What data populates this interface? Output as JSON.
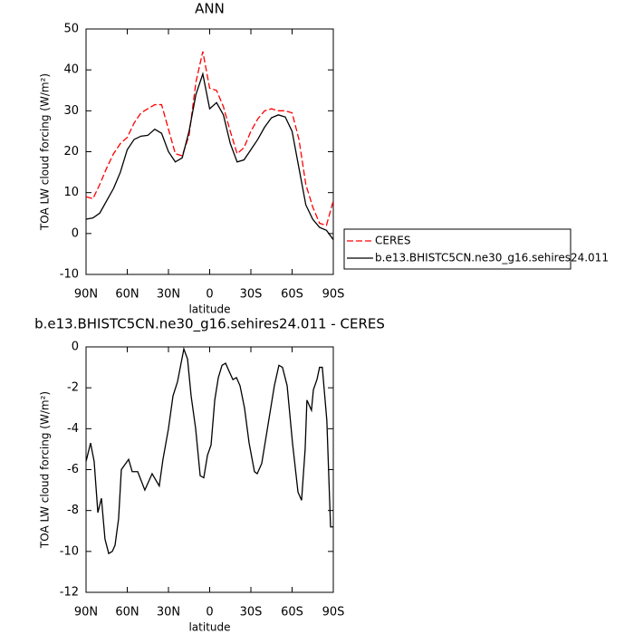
{
  "chart_data": [
    {
      "type": "line",
      "title": "ANN",
      "xlabel": "latitude",
      "ylabel": "TOA LW cloud forcing (W/m²)",
      "x": [
        90,
        85,
        80,
        75,
        70,
        65,
        60,
        55,
        50,
        45,
        40,
        35,
        30,
        25,
        20,
        15,
        10,
        5,
        0,
        -5,
        -10,
        -15,
        -20,
        -25,
        -30,
        -35,
        -40,
        -45,
        -50,
        -55,
        -60,
        -65,
        -70,
        -75,
        -80,
        -85,
        -90
      ],
      "series": [
        {
          "name": "CERES",
          "color": "#ff0000",
          "dash": true,
          "values": [
            9.0,
            8.5,
            12,
            16,
            19.5,
            22,
            23.5,
            27,
            29.5,
            30.5,
            31.5,
            31.5,
            25.5,
            19.5,
            19,
            24,
            37,
            44.5,
            35.5,
            35,
            31,
            25,
            19.5,
            21,
            25,
            28,
            30,
            30.5,
            30,
            30,
            29.5,
            23,
            12,
            6.5,
            2.5,
            2,
            8
          ]
        },
        {
          "name": "b.e13.BHISTC5CN.ne30_g16.sehires24.011",
          "color": "#000000",
          "dash": false,
          "values": [
            3.5,
            3.8,
            5,
            8,
            11,
            15,
            20.5,
            23,
            23.8,
            24,
            25.5,
            24.5,
            20,
            17.5,
            18.5,
            25,
            34,
            39,
            30.5,
            32,
            29,
            22,
            17.5,
            18,
            20.5,
            23,
            26,
            28.3,
            29,
            28.5,
            25,
            16,
            7,
            3.5,
            1.5,
            0.8,
            -1.5
          ]
        }
      ],
      "xlim": [
        90,
        -90
      ],
      "xticks": [
        {
          "value": 90,
          "label": "90N"
        },
        {
          "value": 60,
          "label": "60N"
        },
        {
          "value": 30,
          "label": "30N"
        },
        0,
        {
          "value": -30,
          "label": "30S"
        },
        {
          "value": -60,
          "label": "60S"
        },
        {
          "value": -90,
          "label": "90S"
        }
      ],
      "ylim": [
        -10,
        50
      ],
      "yticks": [
        -10,
        0,
        10,
        20,
        30,
        40,
        50
      ],
      "legend": "right"
    },
    {
      "type": "line",
      "title": "b.e13.BHISTC5CN.ne30_g16.sehires24.011 - CERES",
      "xlabel": "latitude",
      "ylabel": "TOA LW cloud forcing (W/m²)",
      "x": [
        90,
        86.7,
        84.1,
        81.4,
        78.8,
        76.2,
        73.5,
        70.9,
        68.9,
        66.3,
        64.3,
        59,
        56.4,
        52.4,
        47.2,
        41.9,
        36.7,
        34,
        30,
        26.7,
        23.4,
        18.8,
        16.1,
        13.5,
        10.2,
        6.9,
        4.3,
        1.6,
        -1,
        -3.7,
        -6.3,
        -9,
        -11.6,
        -14.2,
        -16.9,
        -19.5,
        -22.1,
        -25.4,
        -28.7,
        -32.6,
        -34.6,
        -37.9,
        -42.5,
        -47.1,
        -50.4,
        -53,
        -56.4,
        -60.3,
        -64.3,
        -66.9,
        -69.5,
        -70.8,
        -74.1,
        -75.5,
        -78.1,
        -80,
        -82,
        -85.3,
        -88,
        -90
      ],
      "values": [
        -5.6,
        -4.7,
        -5.6,
        -8.1,
        -7.4,
        -9.4,
        -10.1,
        -10.0,
        -9.7,
        -8.4,
        -6.0,
        -5.5,
        -6.1,
        -6.1,
        -7.0,
        -6.2,
        -6.8,
        -5.5,
        -4.0,
        -2.4,
        -1.7,
        -0.1,
        -0.6,
        -2.4,
        -4.0,
        -6.3,
        -6.4,
        -5.3,
        -4.8,
        -2.6,
        -1.5,
        -0.9,
        -0.8,
        -1.2,
        -1.6,
        -1.5,
        -1.9,
        -3.0,
        -4.7,
        -6.1,
        -6.2,
        -5.7,
        -3.8,
        -1.9,
        -0.9,
        -1.0,
        -1.9,
        -4.7,
        -7.1,
        -7.5,
        -5.0,
        -2.6,
        -3.1,
        -2.1,
        -1.6,
        -1.0,
        -1.0,
        -3.6,
        -8.8,
        -8.8
      ],
      "color": "#000000",
      "xlim": [
        90,
        -90
      ],
      "xticks": [
        {
          "value": 90,
          "label": "90N"
        },
        {
          "value": 60,
          "label": "60N"
        },
        {
          "value": 30,
          "label": "30N"
        },
        0,
        {
          "value": -30,
          "label": "30S"
        },
        {
          "value": -60,
          "label": "60S"
        },
        {
          "value": -90,
          "label": "90S"
        }
      ],
      "ylim": [
        -12,
        0
      ],
      "yticks": [
        -12,
        -10,
        -8,
        -6,
        -4,
        -2,
        0
      ]
    }
  ]
}
